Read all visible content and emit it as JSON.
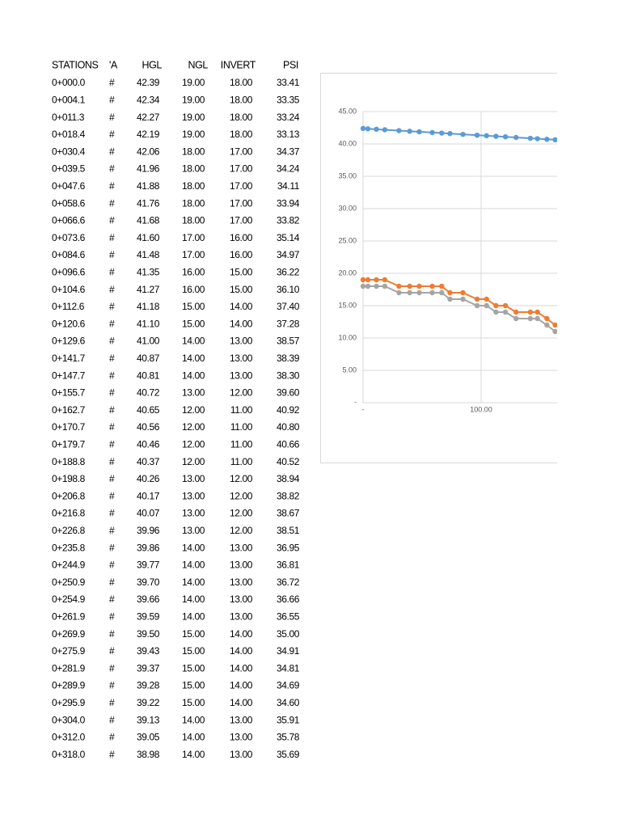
{
  "table": {
    "headers": [
      "STATIONS",
      "'A",
      "HGL",
      "NGL",
      "INVERT",
      "PSI"
    ],
    "rows": [
      [
        "0+000.0",
        "#",
        "42.39",
        "19.00",
        "18.00",
        "33.41"
      ],
      [
        "0+004.1",
        "#",
        "42.34",
        "19.00",
        "18.00",
        "33.35"
      ],
      [
        "0+011.3",
        "#",
        "42.27",
        "19.00",
        "18.00",
        "33.24"
      ],
      [
        "0+018.4",
        "#",
        "42.19",
        "19.00",
        "18.00",
        "33.13"
      ],
      [
        "0+030.4",
        "#",
        "42.06",
        "18.00",
        "17.00",
        "34.37"
      ],
      [
        "0+039.5",
        "#",
        "41.96",
        "18.00",
        "17.00",
        "34.24"
      ],
      [
        "0+047.6",
        "#",
        "41.88",
        "18.00",
        "17.00",
        "34.11"
      ],
      [
        "0+058.6",
        "#",
        "41.76",
        "18.00",
        "17.00",
        "33.94"
      ],
      [
        "0+066.6",
        "#",
        "41.68",
        "18.00",
        "17.00",
        "33.82"
      ],
      [
        "0+073.6",
        "#",
        "41.60",
        "17.00",
        "16.00",
        "35.14"
      ],
      [
        "0+084.6",
        "#",
        "41.48",
        "17.00",
        "16.00",
        "34.97"
      ],
      [
        "0+096.6",
        "#",
        "41.35",
        "16.00",
        "15.00",
        "36.22"
      ],
      [
        "0+104.6",
        "#",
        "41.27",
        "16.00",
        "15.00",
        "36.10"
      ],
      [
        "0+112.6",
        "#",
        "41.18",
        "15.00",
        "14.00",
        "37.40"
      ],
      [
        "0+120.6",
        "#",
        "41.10",
        "15.00",
        "14.00",
        "37.28"
      ],
      [
        "0+129.6",
        "#",
        "41.00",
        "14.00",
        "13.00",
        "38.57"
      ],
      [
        "0+141.7",
        "#",
        "40.87",
        "14.00",
        "13.00",
        "38.39"
      ],
      [
        "0+147.7",
        "#",
        "40.81",
        "14.00",
        "13.00",
        "38.30"
      ],
      [
        "0+155.7",
        "#",
        "40.72",
        "13.00",
        "12.00",
        "39.60"
      ],
      [
        "0+162.7",
        "#",
        "40.65",
        "12.00",
        "11.00",
        "40.92"
      ],
      [
        "0+170.7",
        "#",
        "40.56",
        "12.00",
        "11.00",
        "40.80"
      ],
      [
        "0+179.7",
        "#",
        "40.46",
        "12.00",
        "11.00",
        "40.66"
      ],
      [
        "0+188.8",
        "#",
        "40.37",
        "12.00",
        "11.00",
        "40.52"
      ],
      [
        "0+198.8",
        "#",
        "40.26",
        "13.00",
        "12.00",
        "38.94"
      ],
      [
        "0+206.8",
        "#",
        "40.17",
        "13.00",
        "12.00",
        "38.82"
      ],
      [
        "0+216.8",
        "#",
        "40.07",
        "13.00",
        "12.00",
        "38.67"
      ],
      [
        "0+226.8",
        "#",
        "39.96",
        "13.00",
        "12.00",
        "38.51"
      ],
      [
        "0+235.8",
        "#",
        "39.86",
        "14.00",
        "13.00",
        "36.95"
      ],
      [
        "0+244.9",
        "#",
        "39.77",
        "14.00",
        "13.00",
        "36.81"
      ],
      [
        "0+250.9",
        "#",
        "39.70",
        "14.00",
        "13.00",
        "36.72"
      ],
      [
        "0+254.9",
        "#",
        "39.66",
        "14.00",
        "13.00",
        "36.66"
      ],
      [
        "0+261.9",
        "#",
        "39.59",
        "14.00",
        "13.00",
        "36.55"
      ],
      [
        "0+269.9",
        "#",
        "39.50",
        "15.00",
        "14.00",
        "35.00"
      ],
      [
        "0+275.9",
        "#",
        "39.43",
        "15.00",
        "14.00",
        "34.91"
      ],
      [
        "0+281.9",
        "#",
        "39.37",
        "15.00",
        "14.00",
        "34.81"
      ],
      [
        "0+289.9",
        "#",
        "39.28",
        "15.00",
        "14.00",
        "34.69"
      ],
      [
        "0+295.9",
        "#",
        "39.22",
        "15.00",
        "14.00",
        "34.60"
      ],
      [
        "0+304.0",
        "#",
        "39.13",
        "14.00",
        "13.00",
        "35.91"
      ],
      [
        "0+312.0",
        "#",
        "39.05",
        "14.00",
        "13.00",
        "35.78"
      ],
      [
        "0+318.0",
        "#",
        "38.98",
        "14.00",
        "13.00",
        "35.69"
      ]
    ]
  },
  "chart_data": {
    "type": "line",
    "x": [
      0,
      4.1,
      11.3,
      18.4,
      30.4,
      39.5,
      47.6,
      58.6,
      66.6,
      73.6,
      84.6,
      96.6,
      104.6,
      112.6,
      120.6,
      129.6,
      141.7,
      147.7,
      155.7,
      162.7
    ],
    "series": [
      {
        "color": "#5b9bd5",
        "values": [
          42.39,
          42.34,
          42.27,
          42.19,
          42.06,
          41.96,
          41.88,
          41.76,
          41.68,
          41.6,
          41.48,
          41.35,
          41.27,
          41.18,
          41.1,
          41.0,
          40.87,
          40.81,
          40.72,
          40.65
        ]
      },
      {
        "color": "#ed7d31",
        "values": [
          19,
          19,
          19,
          19,
          18,
          18,
          18,
          18,
          18,
          17,
          17,
          16,
          16,
          15,
          15,
          14,
          14,
          14,
          13,
          12
        ]
      },
      {
        "color": "#a5a5a5",
        "values": [
          18,
          18,
          18,
          18,
          17,
          17,
          17,
          17,
          17,
          16,
          16,
          15,
          15,
          14,
          14,
          13,
          13,
          13,
          12,
          11
        ]
      }
    ],
    "xlim": [
      0,
      165
    ],
    "ylim": [
      0,
      45
    ],
    "xticks": [
      {
        "value": 0,
        "label": "-"
      },
      {
        "value": 100,
        "label": "100.00"
      }
    ],
    "yticks": [
      {
        "value": 0,
        "label": "-"
      },
      {
        "value": 5,
        "label": "5.00"
      },
      {
        "value": 10,
        "label": "10.00"
      },
      {
        "value": 15,
        "label": "15.00"
      },
      {
        "value": 20,
        "label": "20.00"
      },
      {
        "value": 25,
        "label": "25.00"
      },
      {
        "value": 30,
        "label": "30.00"
      },
      {
        "value": 35,
        "label": "35.00"
      },
      {
        "value": 40,
        "label": "40.00"
      },
      {
        "value": 45,
        "label": "45.00"
      }
    ],
    "grid": true
  }
}
